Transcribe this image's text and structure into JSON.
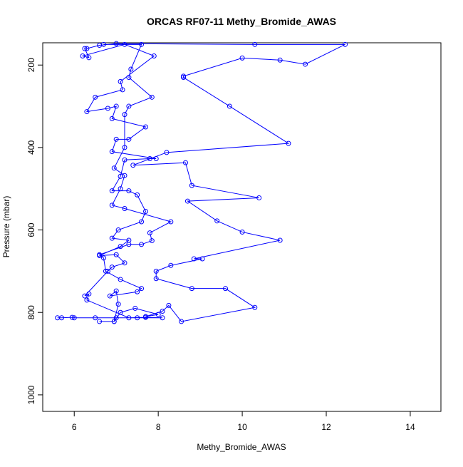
{
  "chart_data": {
    "type": "line",
    "title": "ORCAS RF07-11 Methy_Bromide_AWAS",
    "x_label": "Methy_Bromide_AWAS",
    "y_label": "Pressure (mbar)",
    "color": "#0000ff",
    "markers": true,
    "xlim": [
      5.25,
      14.73
    ],
    "ylim": [
      1040,
      146
    ],
    "y_reversed": true,
    "xticks": [
      6,
      8,
      10,
      12,
      14
    ],
    "yticks": [
      200,
      400,
      600,
      800,
      1000
    ],
    "x": [
      5.6,
      5.7,
      5.95,
      6.0,
      6.5,
      7.0,
      7.5,
      8.1,
      7.7,
      7.3,
      6.3,
      6.35,
      6.25,
      6.8,
      6.9,
      7.2,
      7.0,
      6.6,
      7.1,
      7.3,
      6.9,
      7.05,
      7.6,
      7.7,
      7.5,
      7.3,
      6.9,
      7.1,
      7.2,
      7.8,
      7.95,
      6.9,
      7.0,
      7.3,
      7.7,
      6.9,
      7.0,
      6.8,
      6.3,
      6.5,
      7.15,
      7.1,
      7.9,
      7.2,
      6.2,
      6.35,
      6.25,
      6.3,
      6.6,
      7.0,
      10.3,
      12.45,
      11.5,
      10.9,
      10.0,
      8.6,
      8.6,
      9.7,
      11.1,
      8.2,
      7.4,
      8.65,
      8.8,
      10.4,
      8.7,
      9.4,
      10.0,
      10.9,
      8.85,
      9.05,
      8.3,
      7.95,
      7.95,
      8.8,
      9.6,
      10.3,
      8.55,
      8.25,
      8.1,
      7.7,
      8.0,
      7.45,
      7.1,
      6.95,
      6.6,
      6.95,
      7.05,
      7.0,
      6.85,
      7.5,
      7.6,
      7.1,
      6.75,
      6.7,
      6.6,
      7.3,
      7.6,
      7.85,
      7.8,
      8.3,
      7.2,
      6.9,
      7.1,
      7.2,
      6.95,
      7.2,
      7.2,
      7.3,
      7.85,
      7.3,
      7.35,
      7.6,
      6.7
    ],
    "values": [
      813,
      813,
      812,
      813,
      813,
      813,
      813,
      813,
      812,
      813,
      770,
      755,
      760,
      700,
      690,
      680,
      660,
      662,
      640,
      625,
      620,
      600,
      580,
      555,
      515,
      505,
      505,
      470,
      430,
      427,
      427,
      410,
      380,
      380,
      350,
      330,
      300,
      305,
      313,
      278,
      260,
      240,
      178,
      150,
      178,
      182,
      160,
      160,
      152,
      148,
      150,
      150,
      198,
      188,
      183,
      227,
      230,
      300,
      390,
      412,
      443,
      437,
      492,
      522,
      530,
      578,
      605,
      625,
      670,
      670,
      686,
      700,
      718,
      742,
      742,
      788,
      822,
      783,
      797,
      810,
      805,
      790,
      800,
      822,
      822,
      822,
      780,
      748,
      760,
      750,
      742,
      720,
      700,
      668,
      660,
      635,
      635,
      626,
      607,
      580,
      548,
      540,
      500,
      468,
      450,
      400,
      320,
      300,
      278,
      230,
      210,
      150,
      150
    ]
  }
}
